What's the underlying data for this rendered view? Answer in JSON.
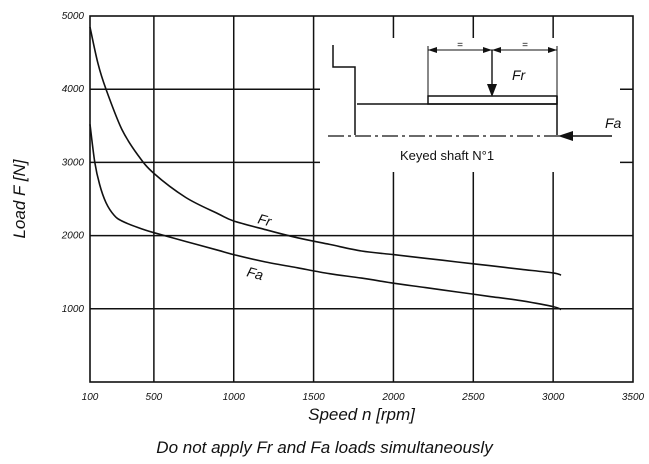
{
  "chart_data": {
    "type": "line",
    "title": "",
    "xlabel": "Speed n [rpm]",
    "ylabel": "Load F [N]",
    "xlim": [
      100,
      3500
    ],
    "ylim": [
      0,
      5000
    ],
    "x_ticks": [
      100,
      500,
      1000,
      1500,
      2000,
      2500,
      3000,
      3500
    ],
    "y_ticks": [
      1000,
      2000,
      3000,
      4000,
      5000
    ],
    "grid": true,
    "series": [
      {
        "name": "Fr",
        "x": [
          100,
          150,
          200,
          300,
          400,
          500,
          700,
          900,
          1000,
          1200,
          1400,
          1600,
          1800,
          2000,
          2200,
          2400,
          2600,
          2800,
          3000,
          3050
        ],
        "y": [
          4850,
          4350,
          4000,
          3450,
          3100,
          2850,
          2520,
          2300,
          2200,
          2080,
          1970,
          1880,
          1790,
          1740,
          1690,
          1640,
          1590,
          1540,
          1490,
          1460
        ]
      },
      {
        "name": "Fa",
        "x": [
          100,
          130,
          160,
          200,
          250,
          300,
          400,
          500,
          700,
          900,
          1000,
          1200,
          1400,
          1600,
          1800,
          2000,
          2200,
          2400,
          2600,
          2800,
          3000,
          3050
        ],
        "y": [
          3520,
          3000,
          2700,
          2450,
          2280,
          2200,
          2110,
          2040,
          1920,
          1800,
          1740,
          1640,
          1560,
          1480,
          1420,
          1350,
          1290,
          1230,
          1170,
          1110,
          1030,
          990
        ]
      }
    ]
  },
  "inset": {
    "caption": "Keyed shaft N°1",
    "fr_label": "Fr",
    "fa_label": "Fa",
    "equal_mark_left": "=",
    "equal_mark_right": "="
  },
  "footnote": "Do not apply Fr and Fa loads simultaneously"
}
